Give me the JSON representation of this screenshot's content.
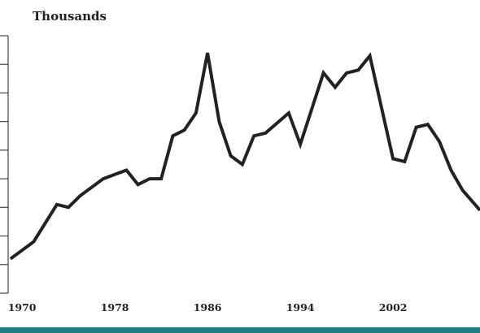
{
  "chart_data": {
    "type": "line",
    "title": "",
    "ylabel": "Thousands",
    "xlabel": "",
    "x_tick_labels": [
      "1970",
      "1978",
      "1986",
      "1994",
      "2002"
    ],
    "xlim": [
      1968.8,
      2009.5
    ],
    "ylim": [
      0,
      90
    ],
    "grid": false,
    "legend": "none",
    "series": [
      {
        "x": [
          1969,
          1971,
          1973,
          1974,
          1975,
          1977,
          1979,
          1980,
          1981,
          1982,
          1983,
          1984,
          1985,
          1986,
          1987,
          1988,
          1989,
          1990,
          1991,
          1993,
          1994,
          1996,
          1997,
          1998,
          1999,
          2000,
          2002,
          2003,
          2004,
          2005,
          2006,
          2007,
          2008,
          2009.5
        ],
        "values": [
          12,
          18,
          31,
          30,
          34,
          40,
          43,
          38,
          40,
          40,
          55,
          57,
          63,
          84,
          60,
          48,
          45,
          55,
          56,
          63,
          52,
          77,
          72,
          77,
          78,
          83,
          47,
          46,
          58,
          59,
          53,
          43,
          36,
          29
        ]
      }
    ],
    "colors": {
      "line": "#222222",
      "axis": "#444444",
      "bottom_bar": "#1d8080"
    }
  }
}
